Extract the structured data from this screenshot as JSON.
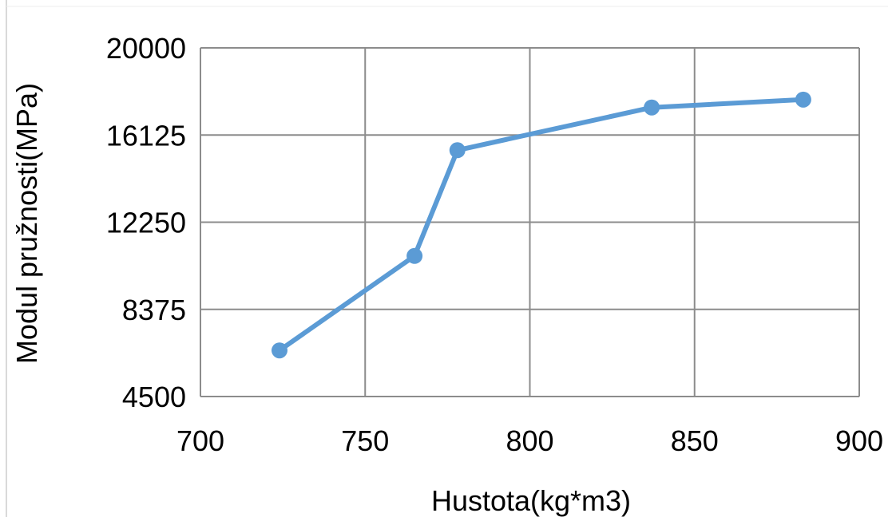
{
  "chart_data": {
    "type": "line",
    "title": "",
    "xlabel": "Hustota(kg*m3)",
    "ylabel": "Modul pružnosti(MPa)",
    "xlim": [
      700,
      900
    ],
    "ylim": [
      4500,
      20000
    ],
    "xticks": [
      700,
      750,
      800,
      850,
      900
    ],
    "yticks": [
      4500,
      8375,
      12250,
      16125,
      20000
    ],
    "xtick_labels": [
      "700",
      "750",
      "800",
      "850",
      "900"
    ],
    "ytick_labels": [
      "4500",
      "8375",
      "12250",
      "16125",
      "20000"
    ],
    "grid": true,
    "legend": "none",
    "series": [
      {
        "color": "#5b9bd5",
        "marker": "circle",
        "points": [
          {
            "x": 724,
            "y": 6550
          },
          {
            "x": 765,
            "y": 10750
          },
          {
            "x": 778,
            "y": 15450
          },
          {
            "x": 837,
            "y": 17350
          },
          {
            "x": 883,
            "y": 17700
          }
        ]
      }
    ],
    "colors": {
      "grid": "#8c8c8c",
      "line": "#5b9bd5",
      "text": "#000000",
      "frame": "#d9d9d9"
    }
  }
}
